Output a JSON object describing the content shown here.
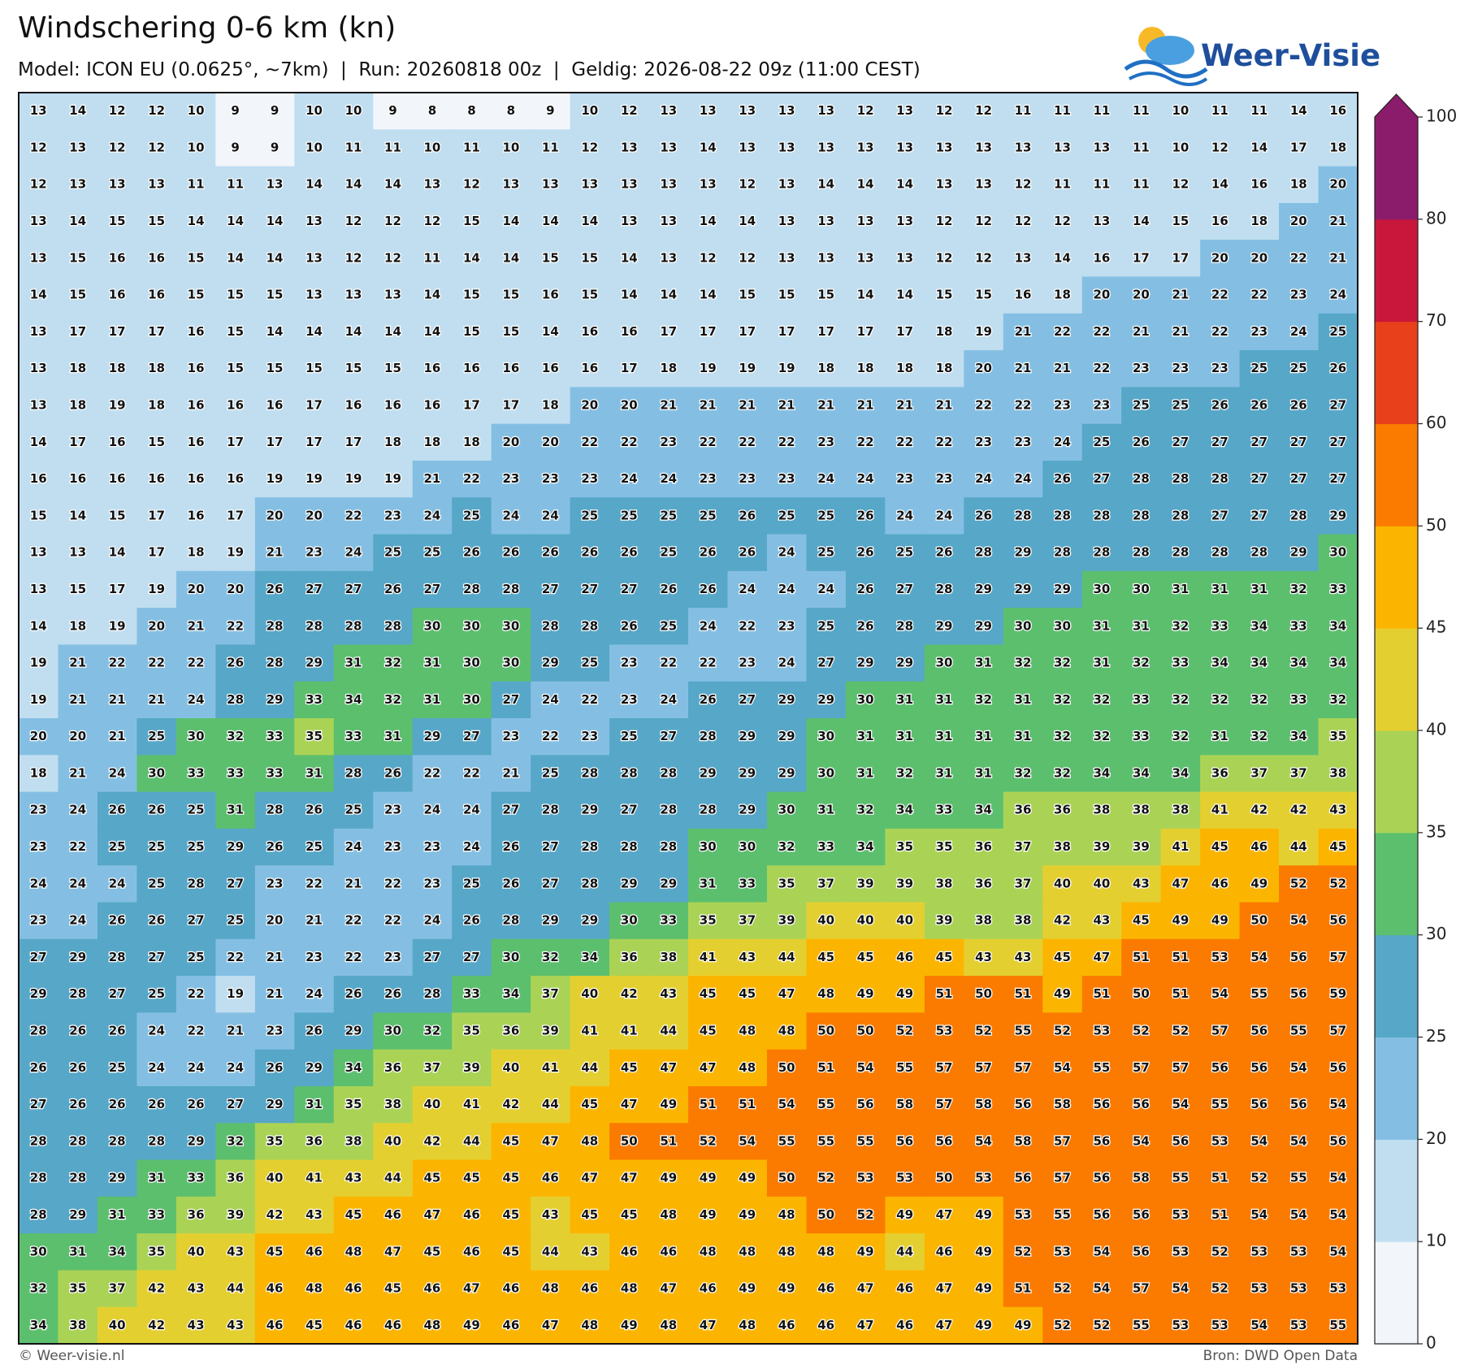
{
  "header": {
    "title": "Windschering 0-6 km (kn)",
    "subtitle": "Model: ICON EU (0.0625°, ~7km)  |  Run: 20260818 00z  |  Geldig: 2026-08-22 09z (11:00 CEST)",
    "logo": "Weer-Visie"
  },
  "map": {
    "rows": [
      [
        13,
        14,
        12,
        12,
        10,
        9,
        9,
        10,
        10,
        9,
        8,
        8,
        8,
        9,
        10,
        12,
        13,
        13,
        13,
        13,
        13,
        12,
        13,
        12,
        12,
        11,
        11,
        11,
        11,
        10,
        11,
        11,
        14,
        16
      ],
      [
        12,
        13,
        12,
        12,
        10,
        9,
        9,
        10,
        11,
        11,
        10,
        11,
        10,
        11,
        12,
        13,
        13,
        14,
        13,
        13,
        13,
        13,
        13,
        13,
        13,
        13,
        13,
        13,
        11,
        10,
        12,
        14,
        17,
        18
      ],
      [
        12,
        13,
        13,
        13,
        11,
        11,
        13,
        14,
        14,
        14,
        13,
        12,
        13,
        13,
        13,
        13,
        13,
        13,
        12,
        13,
        14,
        14,
        14,
        13,
        13,
        12,
        11,
        11,
        11,
        12,
        14,
        16,
        18,
        20
      ],
      [
        13,
        14,
        15,
        15,
        14,
        14,
        14,
        13,
        12,
        12,
        12,
        15,
        14,
        14,
        14,
        13,
        13,
        14,
        14,
        13,
        13,
        13,
        13,
        12,
        12,
        12,
        12,
        13,
        14,
        15,
        16,
        18,
        20,
        21
      ],
      [
        13,
        15,
        16,
        16,
        15,
        14,
        14,
        13,
        12,
        12,
        11,
        14,
        14,
        15,
        15,
        14,
        13,
        12,
        12,
        13,
        13,
        13,
        13,
        12,
        12,
        13,
        14,
        16,
        17,
        17,
        20,
        20,
        22,
        21
      ],
      [
        14,
        15,
        16,
        16,
        15,
        15,
        15,
        13,
        13,
        13,
        14,
        15,
        15,
        16,
        15,
        14,
        14,
        14,
        15,
        15,
        15,
        14,
        14,
        15,
        15,
        16,
        18,
        20,
        20,
        21,
        22,
        22,
        23,
        24
      ],
      [
        13,
        17,
        17,
        17,
        16,
        15,
        14,
        14,
        14,
        14,
        14,
        15,
        15,
        14,
        16,
        16,
        17,
        17,
        17,
        17,
        17,
        17,
        17,
        18,
        19,
        21,
        22,
        22,
        21,
        21,
        22,
        23,
        24,
        25
      ],
      [
        13,
        18,
        18,
        18,
        16,
        15,
        15,
        15,
        15,
        15,
        16,
        16,
        16,
        16,
        16,
        17,
        18,
        19,
        19,
        19,
        18,
        18,
        18,
        18,
        20,
        21,
        21,
        22,
        23,
        23,
        23,
        25,
        25,
        26
      ],
      [
        13,
        18,
        19,
        18,
        16,
        16,
        16,
        17,
        16,
        16,
        16,
        17,
        17,
        18,
        20,
        20,
        21,
        21,
        21,
        21,
        21,
        21,
        21,
        21,
        22,
        22,
        23,
        23,
        25,
        25,
        26,
        26,
        26,
        27
      ],
      [
        14,
        17,
        16,
        15,
        16,
        17,
        17,
        17,
        17,
        18,
        18,
        18,
        20,
        20,
        22,
        22,
        23,
        22,
        22,
        22,
        23,
        22,
        22,
        22,
        23,
        23,
        24,
        25,
        26,
        27,
        27,
        27,
        27,
        27
      ],
      [
        16,
        16,
        16,
        16,
        16,
        16,
        19,
        19,
        19,
        19,
        21,
        22,
        23,
        23,
        23,
        24,
        24,
        23,
        23,
        23,
        24,
        24,
        23,
        23,
        24,
        24,
        26,
        27,
        28,
        28,
        28,
        27,
        27,
        27
      ],
      [
        15,
        14,
        15,
        17,
        16,
        17,
        20,
        20,
        22,
        23,
        24,
        25,
        24,
        24,
        25,
        25,
        25,
        25,
        26,
        25,
        25,
        26,
        24,
        24,
        26,
        28,
        28,
        28,
        28,
        28,
        27,
        27,
        28,
        29
      ],
      [
        13,
        13,
        14,
        17,
        18,
        19,
        21,
        23,
        24,
        25,
        25,
        26,
        26,
        26,
        26,
        26,
        25,
        26,
        26,
        24,
        25,
        26,
        25,
        26,
        28,
        29,
        28,
        28,
        28,
        28,
        28,
        28,
        29,
        30
      ],
      [
        13,
        15,
        17,
        19,
        20,
        20,
        26,
        27,
        27,
        26,
        27,
        28,
        28,
        27,
        27,
        27,
        26,
        26,
        24,
        24,
        24,
        26,
        27,
        28,
        29,
        29,
        29,
        30,
        30,
        31,
        31,
        31,
        32,
        33
      ],
      [
        14,
        18,
        19,
        20,
        21,
        22,
        28,
        28,
        28,
        28,
        30,
        30,
        30,
        28,
        28,
        26,
        25,
        24,
        22,
        23,
        25,
        26,
        28,
        29,
        29,
        30,
        30,
        31,
        31,
        32,
        33,
        34,
        33,
        34
      ],
      [
        19,
        21,
        22,
        22,
        22,
        26,
        28,
        29,
        31,
        32,
        31,
        30,
        30,
        29,
        25,
        23,
        22,
        22,
        23,
        24,
        27,
        29,
        29,
        30,
        31,
        32,
        32,
        31,
        32,
        33,
        34,
        34,
        34,
        34
      ],
      [
        19,
        21,
        21,
        21,
        24,
        28,
        29,
        33,
        34,
        32,
        31,
        30,
        27,
        24,
        22,
        23,
        24,
        26,
        27,
        29,
        29,
        30,
        31,
        31,
        32,
        31,
        32,
        32,
        33,
        32,
        32,
        32,
        33,
        32
      ],
      [
        20,
        20,
        21,
        25,
        30,
        32,
        33,
        35,
        33,
        31,
        29,
        27,
        23,
        22,
        23,
        25,
        27,
        28,
        29,
        29,
        30,
        31,
        31,
        31,
        31,
        31,
        32,
        32,
        33,
        32,
        31,
        32,
        34,
        35
      ],
      [
        18,
        21,
        24,
        30,
        33,
        33,
        33,
        31,
        28,
        26,
        22,
        22,
        21,
        25,
        28,
        28,
        28,
        29,
        29,
        29,
        30,
        31,
        32,
        31,
        31,
        32,
        32,
        34,
        34,
        34,
        36,
        37,
        37,
        38
      ],
      [
        23,
        24,
        26,
        26,
        25,
        31,
        28,
        26,
        25,
        23,
        24,
        24,
        27,
        28,
        29,
        27,
        28,
        28,
        29,
        30,
        31,
        32,
        34,
        33,
        34,
        36,
        36,
        38,
        38,
        38,
        41,
        42,
        42,
        43
      ],
      [
        23,
        22,
        25,
        25,
        25,
        29,
        26,
        25,
        24,
        23,
        23,
        24,
        26,
        27,
        28,
        28,
        28,
        30,
        30,
        32,
        33,
        34,
        35,
        35,
        36,
        37,
        38,
        39,
        39,
        41,
        45,
        46,
        44,
        45
      ],
      [
        24,
        24,
        24,
        25,
        28,
        27,
        23,
        22,
        21,
        22,
        23,
        25,
        26,
        27,
        28,
        29,
        29,
        31,
        33,
        35,
        37,
        39,
        39,
        38,
        36,
        37,
        40,
        40,
        43,
        47,
        46,
        49,
        52,
        52
      ],
      [
        23,
        24,
        26,
        26,
        27,
        25,
        20,
        21,
        22,
        22,
        24,
        26,
        28,
        29,
        29,
        30,
        33,
        35,
        37,
        39,
        40,
        40,
        40,
        39,
        38,
        38,
        42,
        43,
        45,
        49,
        49,
        50,
        54,
        56
      ],
      [
        27,
        29,
        28,
        27,
        25,
        22,
        21,
        23,
        22,
        23,
        27,
        27,
        30,
        32,
        34,
        36,
        38,
        41,
        43,
        44,
        45,
        45,
        46,
        45,
        43,
        43,
        45,
        47,
        51,
        51,
        53,
        54,
        56,
        57
      ],
      [
        29,
        28,
        27,
        25,
        22,
        19,
        21,
        24,
        26,
        26,
        28,
        33,
        34,
        37,
        40,
        42,
        43,
        45,
        45,
        47,
        48,
        49,
        49,
        51,
        50,
        51,
        49,
        51,
        50,
        51,
        54,
        55,
        56,
        59
      ],
      [
        28,
        26,
        26,
        24,
        22,
        21,
        23,
        26,
        29,
        30,
        32,
        35,
        36,
        39,
        41,
        41,
        44,
        45,
        48,
        48,
        50,
        50,
        52,
        53,
        52,
        55,
        52,
        53,
        52,
        52,
        57,
        56,
        55,
        57
      ],
      [
        26,
        26,
        25,
        24,
        24,
        24,
        26,
        29,
        34,
        36,
        37,
        39,
        40,
        41,
        44,
        45,
        47,
        47,
        48,
        50,
        51,
        54,
        55,
        57,
        57,
        57,
        54,
        55,
        57,
        57,
        56,
        56,
        54,
        56
      ],
      [
        27,
        26,
        26,
        26,
        26,
        27,
        29,
        31,
        35,
        38,
        40,
        41,
        42,
        44,
        45,
        47,
        49,
        51,
        51,
        54,
        55,
        56,
        58,
        57,
        58,
        56,
        58,
        56,
        56,
        54,
        55,
        56,
        56,
        54
      ],
      [
        28,
        28,
        28,
        28,
        29,
        32,
        35,
        36,
        38,
        40,
        42,
        44,
        45,
        47,
        48,
        50,
        51,
        52,
        54,
        55,
        55,
        55,
        56,
        56,
        54,
        58,
        57,
        56,
        54,
        56,
        53,
        54,
        54,
        56
      ],
      [
        28,
        28,
        29,
        31,
        33,
        36,
        40,
        41,
        43,
        44,
        45,
        45,
        45,
        46,
        47,
        47,
        49,
        49,
        49,
        50,
        52,
        53,
        53,
        50,
        53,
        56,
        57,
        56,
        58,
        55,
        51,
        52,
        55,
        54
      ],
      [
        28,
        29,
        31,
        33,
        36,
        39,
        42,
        43,
        45,
        46,
        47,
        46,
        45,
        43,
        45,
        45,
        48,
        49,
        49,
        48,
        50,
        52,
        49,
        47,
        49,
        53,
        55,
        56,
        56,
        53,
        51,
        54,
        54,
        54
      ],
      [
        30,
        31,
        34,
        35,
        40,
        43,
        45,
        46,
        48,
        47,
        45,
        46,
        45,
        44,
        43,
        46,
        46,
        48,
        48,
        48,
        48,
        49,
        44,
        46,
        49,
        52,
        53,
        54,
        56,
        53,
        52,
        53,
        53,
        54
      ],
      [
        32,
        35,
        37,
        42,
        43,
        44,
        46,
        48,
        46,
        45,
        46,
        47,
        46,
        48,
        46,
        48,
        47,
        46,
        49,
        49,
        46,
        47,
        46,
        47,
        49,
        51,
        52,
        54,
        57,
        54,
        52,
        53,
        53,
        53
      ],
      [
        34,
        38,
        40,
        42,
        43,
        43,
        46,
        45,
        46,
        46,
        48,
        49,
        46,
        47,
        48,
        49,
        48,
        47,
        48,
        46,
        46,
        47,
        46,
        47,
        49,
        49,
        52,
        52,
        55,
        53,
        53,
        54,
        53,
        55
      ]
    ]
  },
  "colorbar": {
    "levels": [
      0,
      10,
      20,
      25,
      30,
      35,
      40,
      45,
      50,
      60,
      70,
      80,
      100
    ],
    "colors": [
      "#f2f6fa",
      "#c0def0",
      "#84bfe3",
      "#57a7c8",
      "#5cbf6e",
      "#aad356",
      "#e4cf30",
      "#fbb500",
      "#fb7b00",
      "#e8401a",
      "#c8173a",
      "#8b1c6b"
    ]
  },
  "footer": {
    "left": "© Weer-visie.nl",
    "right": "Bron: DWD Open Data"
  }
}
